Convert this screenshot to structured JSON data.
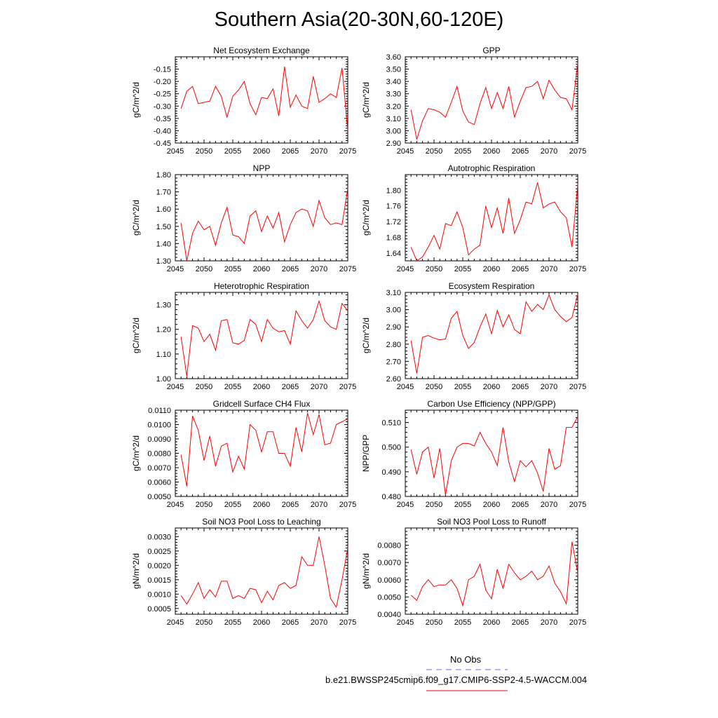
{
  "title": "Southern Asia(20-30N,60-120E)",
  "legend": {
    "obs_label": "No Obs",
    "obs_color": "#6a6aff",
    "model_label": "b.e21.BWSSP245cmip6.f09_g17.CMIP6-SSP2-4.5-WACCM.004",
    "model_color": "#ff0000"
  },
  "line_color": "#ff0000",
  "chart_data": [
    {
      "type": "line",
      "title": "Net Ecosystem Exchange",
      "ylabel": "gC/m^2/d",
      "xlim": [
        2045,
        2075
      ],
      "ylim": [
        -0.45,
        -0.1
      ],
      "x_ticks": [
        2045,
        2050,
        2055,
        2060,
        2065,
        2070,
        2075
      ],
      "y_ticks": [
        "-0.45",
        "-0.40",
        "-0.35",
        "-0.30",
        "-0.25",
        "-0.20",
        "-0.15"
      ],
      "x": [
        2046,
        2047,
        2048,
        2049,
        2050,
        2051,
        2052,
        2053,
        2054,
        2055,
        2056,
        2057,
        2058,
        2059,
        2060,
        2061,
        2062,
        2063,
        2064,
        2065,
        2066,
        2067,
        2068,
        2069,
        2070,
        2071,
        2072,
        2073,
        2074,
        2075
      ],
      "values": [
        -0.31,
        -0.24,
        -0.22,
        -0.29,
        -0.285,
        -0.28,
        -0.22,
        -0.26,
        -0.345,
        -0.26,
        -0.235,
        -0.2,
        -0.29,
        -0.335,
        -0.265,
        -0.27,
        -0.23,
        -0.34,
        -0.14,
        -0.305,
        -0.255,
        -0.3,
        -0.31,
        -0.18,
        -0.285,
        -0.27,
        -0.25,
        -0.265,
        -0.145,
        -0.4
      ]
    },
    {
      "type": "line",
      "title": "GPP",
      "ylabel": "gC/m^2/d",
      "xlim": [
        2045,
        2075
      ],
      "ylim": [
        2.9,
        3.6
      ],
      "x_ticks": [
        2045,
        2050,
        2055,
        2060,
        2065,
        2070,
        2075
      ],
      "y_ticks": [
        "2.90",
        "3.00",
        "3.10",
        "3.20",
        "3.30",
        "3.40",
        "3.50",
        "3.60"
      ],
      "x": [
        2046,
        2047,
        2048,
        2049,
        2050,
        2051,
        2052,
        2053,
        2054,
        2055,
        2056,
        2057,
        2058,
        2059,
        2060,
        2061,
        2062,
        2063,
        2064,
        2065,
        2066,
        2067,
        2068,
        2069,
        2070,
        2071,
        2072,
        2073,
        2074,
        2075
      ],
      "values": [
        3.17,
        2.93,
        3.08,
        3.18,
        3.17,
        3.15,
        3.11,
        3.23,
        3.36,
        3.16,
        3.07,
        3.05,
        3.22,
        3.35,
        3.18,
        3.31,
        3.18,
        3.36,
        3.11,
        3.24,
        3.35,
        3.36,
        3.4,
        3.26,
        3.41,
        3.33,
        3.27,
        3.26,
        3.17,
        3.55
      ]
    },
    {
      "type": "line",
      "title": "NPP",
      "ylabel": "gC/m^2/d",
      "xlim": [
        2045,
        2075
      ],
      "ylim": [
        1.3,
        1.8
      ],
      "x_ticks": [
        2045,
        2050,
        2055,
        2060,
        2065,
        2070,
        2075
      ],
      "y_ticks": [
        "1.30",
        "1.40",
        "1.50",
        "1.60",
        "1.70",
        "1.80"
      ],
      "x": [
        2046,
        2047,
        2048,
        2049,
        2050,
        2051,
        2052,
        2053,
        2054,
        2055,
        2056,
        2057,
        2058,
        2059,
        2060,
        2061,
        2062,
        2063,
        2064,
        2065,
        2066,
        2067,
        2068,
        2069,
        2070,
        2071,
        2072,
        2073,
        2074,
        2075
      ],
      "values": [
        1.52,
        1.3,
        1.46,
        1.53,
        1.48,
        1.5,
        1.39,
        1.52,
        1.61,
        1.45,
        1.44,
        1.4,
        1.56,
        1.59,
        1.47,
        1.56,
        1.49,
        1.58,
        1.41,
        1.51,
        1.58,
        1.6,
        1.59,
        1.5,
        1.65,
        1.55,
        1.51,
        1.52,
        1.51,
        1.72
      ]
    },
    {
      "type": "line",
      "title": "Autotrophic Respiration",
      "ylabel": "gC/m^2/d",
      "xlim": [
        2045,
        2075
      ],
      "ylim": [
        1.62,
        1.84
      ],
      "x_ticks": [
        2045,
        2050,
        2055,
        2060,
        2065,
        2070,
        2075
      ],
      "y_ticks": [
        "1.64",
        "1.68",
        "1.72",
        "1.76",
        "1.80"
      ],
      "x": [
        2046,
        2047,
        2048,
        2049,
        2050,
        2051,
        2052,
        2053,
        2054,
        2055,
        2056,
        2057,
        2058,
        2059,
        2060,
        2061,
        2062,
        2063,
        2064,
        2065,
        2066,
        2067,
        2068,
        2069,
        2070,
        2071,
        2072,
        2073,
        2074,
        2075
      ],
      "values": [
        1.655,
        1.62,
        1.63,
        1.655,
        1.685,
        1.65,
        1.715,
        1.71,
        1.745,
        1.705,
        1.635,
        1.65,
        1.66,
        1.76,
        1.705,
        1.755,
        1.69,
        1.78,
        1.69,
        1.725,
        1.77,
        1.765,
        1.82,
        1.755,
        1.765,
        1.77,
        1.745,
        1.73,
        1.655,
        1.815
      ]
    },
    {
      "type": "line",
      "title": "Heterotrophic Respiration",
      "ylabel": "gC/m^2/d",
      "xlim": [
        2045,
        2075
      ],
      "ylim": [
        1.0,
        1.35
      ],
      "x_ticks": [
        2045,
        2050,
        2055,
        2060,
        2065,
        2070,
        2075
      ],
      "y_ticks": [
        "1.00",
        "1.10",
        "1.20",
        "1.30"
      ],
      "x": [
        2046,
        2047,
        2048,
        2049,
        2050,
        2051,
        2052,
        2053,
        2054,
        2055,
        2056,
        2057,
        2058,
        2059,
        2060,
        2061,
        2062,
        2063,
        2064,
        2065,
        2066,
        2067,
        2068,
        2069,
        2070,
        2071,
        2072,
        2073,
        2074,
        2075
      ],
      "values": [
        1.17,
        1.01,
        1.215,
        1.205,
        1.15,
        1.18,
        1.115,
        1.235,
        1.24,
        1.145,
        1.14,
        1.155,
        1.24,
        1.22,
        1.15,
        1.24,
        1.205,
        1.19,
        1.195,
        1.14,
        1.275,
        1.235,
        1.205,
        1.24,
        1.315,
        1.235,
        1.21,
        1.2,
        1.305,
        1.275
      ]
    },
    {
      "type": "line",
      "title": "Ecosystem Respiration",
      "ylabel": "gC/m^2/d",
      "xlim": [
        2045,
        2075
      ],
      "ylim": [
        2.6,
        3.1
      ],
      "x_ticks": [
        2045,
        2050,
        2055,
        2060,
        2065,
        2070,
        2075
      ],
      "y_ticks": [
        "2.60",
        "2.70",
        "2.80",
        "2.90",
        "3.00",
        "3.10"
      ],
      "x": [
        2046,
        2047,
        2048,
        2049,
        2050,
        2051,
        2052,
        2053,
        2054,
        2055,
        2056,
        2057,
        2058,
        2059,
        2060,
        2061,
        2062,
        2063,
        2064,
        2065,
        2066,
        2067,
        2068,
        2069,
        2070,
        2071,
        2072,
        2073,
        2074,
        2075
      ],
      "values": [
        2.82,
        2.63,
        2.84,
        2.85,
        2.835,
        2.825,
        2.83,
        2.95,
        2.99,
        2.85,
        2.775,
        2.81,
        2.9,
        2.975,
        2.86,
        2.995,
        2.9,
        2.97,
        2.885,
        2.86,
        3.045,
        2.99,
        3.03,
        3.0,
        3.085,
        3.0,
        2.96,
        2.93,
        2.955,
        3.09
      ]
    },
    {
      "type": "line",
      "title": "Gridcell Surface CH4 Flux",
      "ylabel": "gC/m^2/d",
      "xlim": [
        2045,
        2075
      ],
      "ylim": [
        0.005,
        0.011
      ],
      "x_ticks": [
        2045,
        2050,
        2055,
        2060,
        2065,
        2070,
        2075
      ],
      "y_ticks": [
        "0.0050",
        "0.0060",
        "0.0070",
        "0.0080",
        "0.0090",
        "0.0100",
        "0.0110"
      ],
      "x": [
        2046,
        2047,
        2048,
        2049,
        2050,
        2051,
        2052,
        2053,
        2054,
        2055,
        2056,
        2057,
        2058,
        2059,
        2060,
        2061,
        2062,
        2063,
        2064,
        2065,
        2066,
        2067,
        2068,
        2069,
        2070,
        2071,
        2072,
        2073,
        2074,
        2075
      ],
      "values": [
        0.0079,
        0.0057,
        0.0106,
        0.0096,
        0.0075,
        0.0092,
        0.0071,
        0.0085,
        0.0087,
        0.0067,
        0.0078,
        0.0069,
        0.01,
        0.0096,
        0.0081,
        0.0095,
        0.0095,
        0.008,
        0.008,
        0.0071,
        0.0098,
        0.0081,
        0.0108,
        0.0093,
        0.0107,
        0.0086,
        0.0087,
        0.01,
        0.0102,
        0.0104
      ]
    },
    {
      "type": "line",
      "title": "Carbon Use Efficiency (NPP/GPP)",
      "ylabel": "NPP/GPP",
      "xlim": [
        2045,
        2075
      ],
      "ylim": [
        0.48,
        0.515
      ],
      "x_ticks": [
        2045,
        2050,
        2055,
        2060,
        2065,
        2070,
        2075
      ],
      "y_ticks": [
        "0.480",
        "0.490",
        "0.500",
        "0.510"
      ],
      "x": [
        2046,
        2047,
        2048,
        2049,
        2050,
        2051,
        2052,
        2053,
        2054,
        2055,
        2056,
        2057,
        2058,
        2059,
        2060,
        2061,
        2062,
        2063,
        2064,
        2065,
        2066,
        2067,
        2068,
        2069,
        2070,
        2071,
        2072,
        2073,
        2074,
        2075
      ],
      "values": [
        0.499,
        0.489,
        0.498,
        0.5,
        0.4875,
        0.4995,
        0.4805,
        0.4945,
        0.5,
        0.5015,
        0.5015,
        0.5005,
        0.506,
        0.5015,
        0.498,
        0.4925,
        0.508,
        0.494,
        0.486,
        0.4945,
        0.492,
        0.4945,
        0.4895,
        0.482,
        0.4995,
        0.491,
        0.4925,
        0.508,
        0.508,
        0.5125
      ]
    },
    {
      "type": "line",
      "title": "Soil NO3 Pool Loss to Leaching",
      "ylabel": "gN/m^2/d",
      "xlim": [
        2045,
        2075
      ],
      "ylim": [
        0.0003,
        0.0033
      ],
      "x_ticks": [
        2045,
        2050,
        2055,
        2060,
        2065,
        2070,
        2075
      ],
      "y_ticks": [
        "0.0005",
        "0.0010",
        "0.0015",
        "0.0020",
        "0.0025",
        "0.0030"
      ],
      "x": [
        2046,
        2047,
        2048,
        2049,
        2050,
        2051,
        2052,
        2053,
        2054,
        2055,
        2056,
        2057,
        2058,
        2059,
        2060,
        2061,
        2062,
        2063,
        2064,
        2065,
        2066,
        2067,
        2068,
        2069,
        2070,
        2071,
        2072,
        2073,
        2074,
        2075
      ],
      "values": [
        0.00095,
        0.00065,
        0.001,
        0.0014,
        0.00085,
        0.00115,
        0.0009,
        0.00145,
        0.00145,
        0.00085,
        0.00095,
        0.00085,
        0.0012,
        0.00115,
        0.0007,
        0.0011,
        0.0008,
        0.0013,
        0.0014,
        0.0012,
        0.0013,
        0.0023,
        0.002,
        0.002,
        0.003,
        0.002,
        0.00085,
        0.00055,
        0.0015,
        0.0026
      ]
    },
    {
      "type": "line",
      "title": "Soil NO3 Pool Loss to Runoff",
      "ylabel": "gN/m^2/d",
      "xlim": [
        2045,
        2075
      ],
      "ylim": [
        0.004,
        0.009
      ],
      "x_ticks": [
        2045,
        2050,
        2055,
        2060,
        2065,
        2070,
        2075
      ],
      "y_ticks": [
        "0.0040",
        "0.0050",
        "0.0060",
        "0.0070",
        "0.0080"
      ],
      "x": [
        2046,
        2047,
        2048,
        2049,
        2050,
        2051,
        2052,
        2053,
        2054,
        2055,
        2056,
        2057,
        2058,
        2059,
        2060,
        2061,
        2062,
        2063,
        2064,
        2065,
        2066,
        2067,
        2068,
        2069,
        2070,
        2071,
        2072,
        2073,
        2074,
        2075
      ],
      "values": [
        0.0051,
        0.0048,
        0.0056,
        0.006,
        0.0056,
        0.0057,
        0.0057,
        0.006,
        0.0055,
        0.0045,
        0.006,
        0.0062,
        0.0069,
        0.0054,
        0.0049,
        0.0066,
        0.0055,
        0.0069,
        0.0064,
        0.006,
        0.0062,
        0.0065,
        0.006,
        0.0062,
        0.0068,
        0.0058,
        0.0053,
        0.0046,
        0.0082,
        0.0064
      ]
    }
  ]
}
